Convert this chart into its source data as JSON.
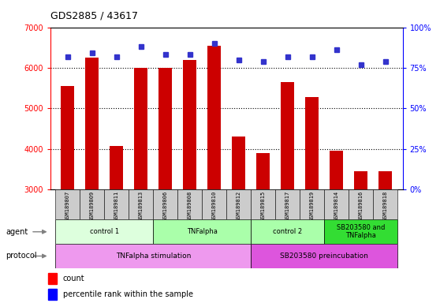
{
  "title": "GDS2885 / 43617",
  "samples": [
    "GSM189807",
    "GSM189809",
    "GSM189811",
    "GSM189813",
    "GSM189806",
    "GSM189808",
    "GSM189810",
    "GSM189812",
    "GSM189815",
    "GSM189817",
    "GSM189819",
    "GSM189814",
    "GSM189816",
    "GSM189818"
  ],
  "counts": [
    5550,
    6250,
    4080,
    6000,
    6000,
    6200,
    6550,
    4300,
    3900,
    5650,
    5280,
    3950,
    3450,
    3450
  ],
  "percentiles": [
    82,
    84,
    82,
    88,
    83,
    83,
    90,
    80,
    79,
    82,
    82,
    86,
    77,
    79
  ],
  "ylim_left": [
    3000,
    7000
  ],
  "ylim_right": [
    0,
    100
  ],
  "yticks_left": [
    3000,
    4000,
    5000,
    6000,
    7000
  ],
  "yticks_right": [
    0,
    25,
    50,
    75,
    100
  ],
  "bar_color": "#cc0000",
  "dot_color": "#3333cc",
  "agent_groups": [
    {
      "label": "control 1",
      "start": 0,
      "end": 4,
      "color": "#ddffdd"
    },
    {
      "label": "TNFalpha",
      "start": 4,
      "end": 8,
      "color": "#aaffaa"
    },
    {
      "label": "control 2",
      "start": 8,
      "end": 11,
      "color": "#aaffaa"
    },
    {
      "label": "SB203580 and\nTNFalpha",
      "start": 11,
      "end": 14,
      "color": "#33dd33"
    }
  ],
  "protocol_groups": [
    {
      "label": "TNFalpha stimulation",
      "start": 0,
      "end": 8,
      "color": "#ee99ee"
    },
    {
      "label": "SB203580 preincubation",
      "start": 8,
      "end": 14,
      "color": "#dd55dd"
    }
  ],
  "sample_bg_color": "#cccccc",
  "background_color": "#ffffff",
  "bar_baseline": 3000
}
